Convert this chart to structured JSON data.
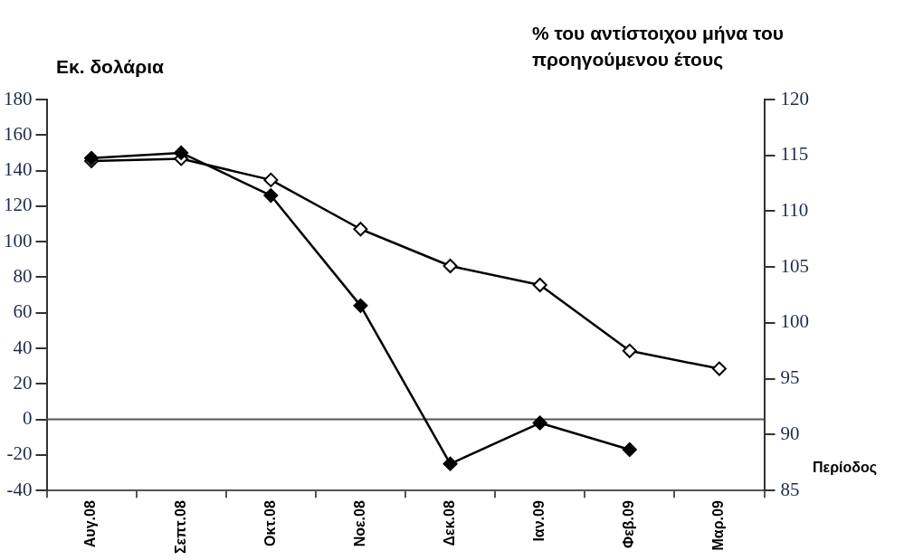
{
  "chart_data": {
    "type": "line",
    "ylabel": "Εκ. δολάρια",
    "y2label": "% του αντίστοιχου μήνα του προηγούμενου έτους",
    "xlabel": "Περίοδος",
    "categories": [
      "Αυγ.08",
      "Σεπτ.08",
      "Οκτ.08",
      "Νοε.08",
      "Δεκ.08",
      "Ιαν.09",
      "Φεβ.09",
      "Μαρ.09"
    ],
    "series": [
      {
        "color": "#000000",
        "values": [
          147,
          150,
          126,
          64,
          -25,
          -2,
          -17,
          null
        ]
      },
      {
        "color": "#000000",
        "axis": "y2",
        "values": [
          114.5,
          114.7,
          112.8,
          108.4,
          105.1,
          103.4,
          97.5,
          95.9
        ]
      }
    ],
    "ylim": [
      -40,
      180
    ],
    "yticks": [
      -40,
      -20,
      0,
      20,
      40,
      60,
      80,
      100,
      120,
      140,
      160,
      180
    ],
    "y2lim": [
      85,
      120
    ],
    "y2ticks": [
      85,
      90,
      95,
      100,
      105,
      110,
      115,
      120
    ],
    "ref_lines": [
      {
        "axis": "y",
        "value": 0,
        "color": "#555555"
      }
    ],
    "marker": "diamond",
    "line_style": "solid",
    "grid": false,
    "legend": false
  }
}
